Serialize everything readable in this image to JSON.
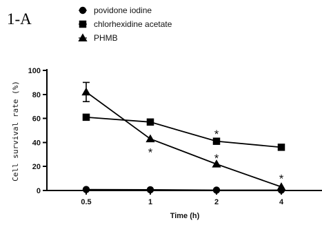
{
  "chart_data": {
    "type": "line",
    "panel_label": "1-A",
    "title": "",
    "xlabel": "Time (h)",
    "ylabel": "Cell survival rate (%)",
    "categories": [
      "0.5",
      "1",
      "2",
      "4"
    ],
    "ylim": [
      0,
      100
    ],
    "yticks": [
      "0",
      "20",
      "40",
      "60",
      "80",
      "100"
    ],
    "grid": false,
    "legend_position": "top",
    "series": [
      {
        "name": "povidone iodine",
        "marker": "circle",
        "values": [
          0.8,
          0.6,
          0.3,
          0.3
        ],
        "errors": [
          0,
          0,
          0,
          0
        ]
      },
      {
        "name": "chlorhexidine acetate",
        "marker": "square",
        "values": [
          61,
          57,
          41,
          36
        ],
        "errors": [
          0,
          0,
          0,
          0
        ]
      },
      {
        "name": "PHMB",
        "marker": "triangle",
        "values": [
          82,
          43,
          22,
          3
        ],
        "errors": [
          8,
          0,
          0,
          0
        ]
      }
    ],
    "annotations": [
      {
        "category_index": 1,
        "y": 32,
        "text": "*"
      },
      {
        "category_index": 2,
        "y": 47,
        "text": "*"
      },
      {
        "category_index": 2,
        "y": 27,
        "text": "*"
      },
      {
        "category_index": 3,
        "y": 10,
        "text": "*"
      }
    ],
    "colors": {
      "line": "#000000",
      "marker": "#000000",
      "background": "#ffffff"
    }
  }
}
